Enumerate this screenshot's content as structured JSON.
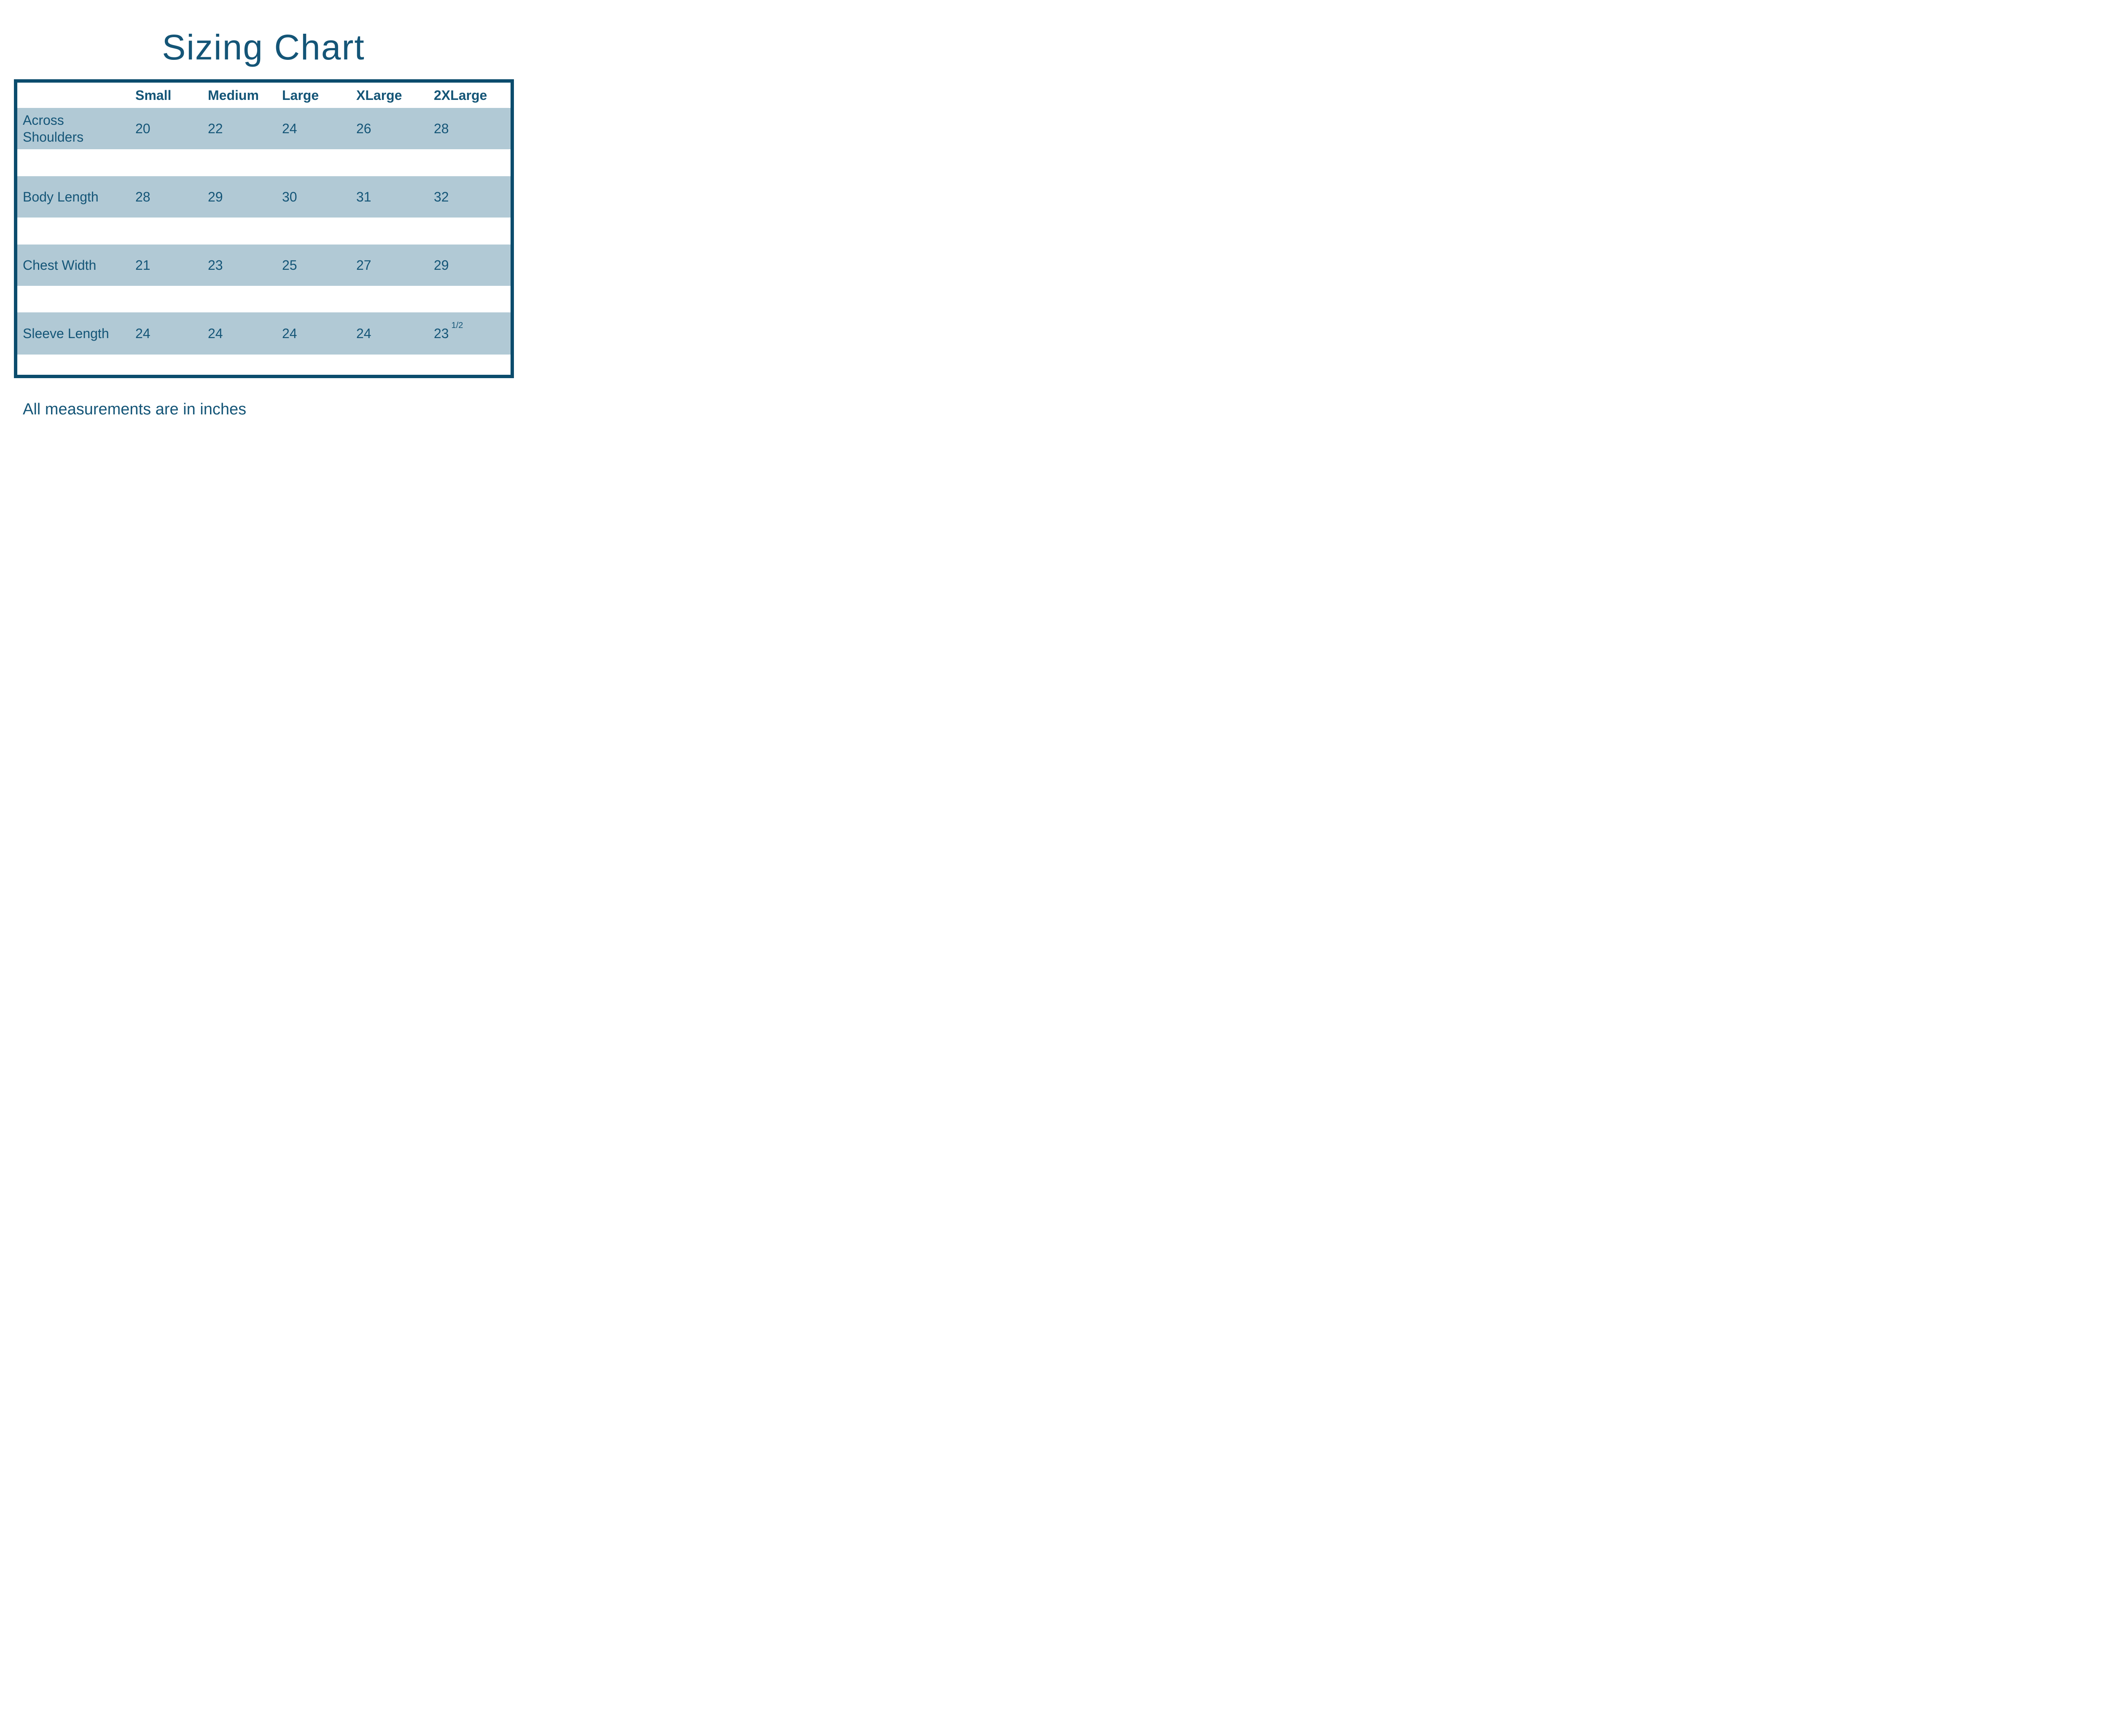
{
  "title": "Sizing Chart",
  "chart_data": {
    "type": "table",
    "title": "Sizing Chart",
    "columns": [
      "Small",
      "Medium",
      "Large",
      "XLarge",
      "2XLarge"
    ],
    "rows": [
      {
        "label": "Across Shoulders",
        "values": [
          20,
          22,
          24,
          26,
          28
        ]
      },
      {
        "label": "Body Length",
        "values": [
          28,
          29,
          30,
          31,
          32
        ]
      },
      {
        "label": "Chest Width",
        "values": [
          21,
          23,
          25,
          27,
          29
        ]
      },
      {
        "label": "Sleeve Length",
        "values": [
          24,
          24,
          24,
          24,
          23.5
        ]
      }
    ],
    "note": "All measurements are in inches"
  },
  "display": {
    "sleeve_2xl_whole": "23",
    "sleeve_2xl_fraction": "1/2"
  },
  "colors": {
    "ink": "#145577",
    "border": "#0b4c6d",
    "band": "#b1c9d5",
    "background": "#ffffff"
  }
}
